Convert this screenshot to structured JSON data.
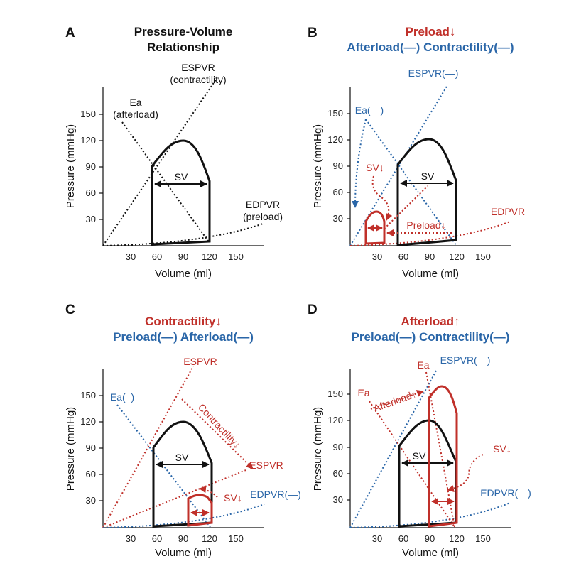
{
  "colors": {
    "black": "#111111",
    "red": "#c0302a",
    "blue": "#2a66a8"
  },
  "axis": {
    "x_ticks": [
      "30",
      "60",
      "90",
      "120",
      "150"
    ],
    "y_ticks": [
      "30",
      "60",
      "90",
      "120",
      "150"
    ],
    "x_label": "Volume (ml)",
    "y_label": "Pressure (mmHg)"
  },
  "panels": {
    "A": {
      "letter": "A",
      "title1": "Pressure-Volume",
      "title2": "Relationship",
      "espvr1": "ESPVR",
      "espvr2": "(contractility)",
      "ea1": "Ea",
      "ea2": "(afterload)",
      "edpvr1": "EDPVR",
      "edpvr2": "(preload)",
      "sv": "SV"
    },
    "B": {
      "letter": "B",
      "title1": "Preload↓",
      "title2": "Afterload(—) Contractility(—)",
      "espvr": "ESPVR(—)",
      "ea": "Ea(—)",
      "sv_down": "SV↓",
      "sv": "SV",
      "preload": "Preload↓",
      "edpvr": "EDPVR"
    },
    "C": {
      "letter": "C",
      "title1": "Contractility↓",
      "title2": "Preload(—) Afterload(—)",
      "espvr_top": "ESPVR",
      "ea": "Ea(–)",
      "contractility": "Contractility↓",
      "espvr_low": "ESPVR",
      "sv": "SV",
      "sv_down": "SV↓",
      "edpvr": "EDPVR(—)"
    },
    "D": {
      "letter": "D",
      "title1": "Afterload↑",
      "title2": "Preload(—) Contractility(—)",
      "ea_top": "Ea",
      "espvr": "ESPVR(—)",
      "ea_left": "Ea",
      "afterload": "Afterload↑",
      "sv": "SV",
      "sv_down": "SV↓",
      "edpvr": "EDPVR(—)"
    }
  }
}
